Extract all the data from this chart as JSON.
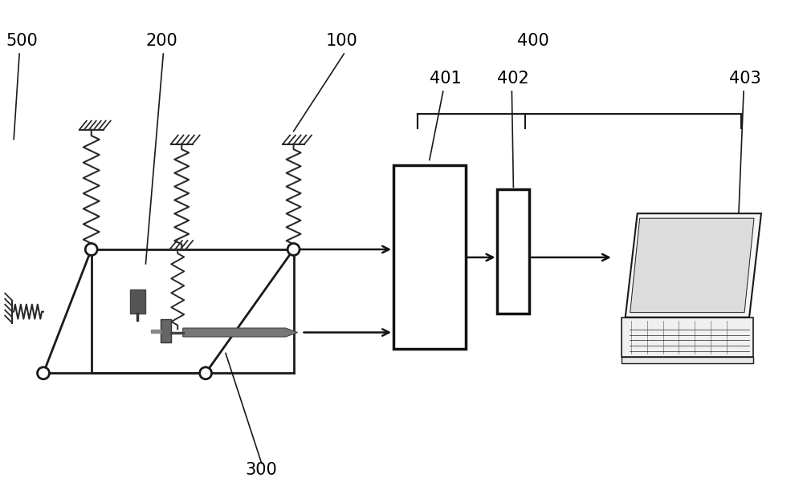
{
  "bg_color": "#ffffff",
  "label_500": "500",
  "label_200": "200",
  "label_100": "100",
  "label_400": "400",
  "label_401": "401",
  "label_402": "402",
  "label_403": "403",
  "label_300": "300",
  "font_size_labels": 15,
  "line_color": "#1a1a1a",
  "spring_color": "#2a2a2a",
  "box_color": "#111111",
  "arrow_color": "#111111"
}
